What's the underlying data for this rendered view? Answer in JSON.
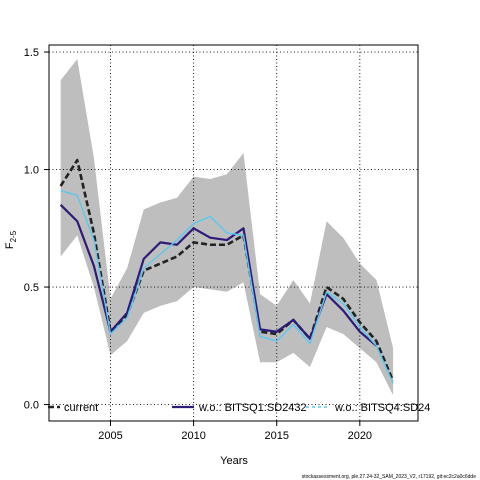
{
  "chart_data": {
    "type": "line",
    "xlabel": "Years",
    "ylabel_main": "F",
    "ylabel_sub": "2-5",
    "xlim": [
      2001.3,
      2023.5
    ],
    "ylim": [
      -0.07,
      1.53
    ],
    "x_ticks": [
      2005,
      2010,
      2015,
      2020
    ],
    "y_ticks": [
      0.0,
      0.5,
      1.0,
      1.5
    ],
    "x_tick_labels": [
      "2005",
      "2010",
      "2015",
      "2020"
    ],
    "y_tick_labels": [
      "0.0",
      "0.5",
      "1.0",
      "1.5"
    ],
    "grid": true,
    "legend_position": "bottom",
    "confidence_band": {
      "x": [
        2002,
        2003,
        2004,
        2005,
        2006,
        2007,
        2008,
        2009,
        2010,
        2011,
        2012,
        2013,
        2014,
        2015,
        2016,
        2017,
        2018,
        2019,
        2020,
        2021,
        2022
      ],
      "lower": [
        0.63,
        0.72,
        0.5,
        0.21,
        0.27,
        0.39,
        0.42,
        0.44,
        0.5,
        0.49,
        0.48,
        0.52,
        0.18,
        0.18,
        0.22,
        0.16,
        0.33,
        0.3,
        0.24,
        0.18,
        0.04
      ],
      "upper": [
        1.38,
        1.47,
        1.05,
        0.45,
        0.58,
        0.83,
        0.86,
        0.88,
        0.97,
        0.96,
        0.98,
        1.07,
        0.47,
        0.42,
        0.53,
        0.43,
        0.78,
        0.71,
        0.6,
        0.53,
        0.24
      ]
    },
    "series": [
      {
        "name": "current",
        "color": "#222222",
        "dash": "6,3",
        "width": 2.6,
        "x": [
          2002,
          2003,
          2004,
          2005,
          2006,
          2007,
          2008,
          2009,
          2010,
          2011,
          2012,
          2013,
          2014,
          2015,
          2016,
          2017,
          2018,
          2019,
          2020,
          2021,
          2022
        ],
        "values": [
          0.93,
          1.04,
          0.73,
          0.31,
          0.38,
          0.57,
          0.6,
          0.63,
          0.69,
          0.68,
          0.68,
          0.72,
          0.31,
          0.3,
          0.36,
          0.28,
          0.5,
          0.45,
          0.35,
          0.27,
          0.1
        ]
      },
      {
        "name": "w.o.: BITSQ1:SD2432",
        "color": "#2e1a78",
        "dash": "",
        "width": 2.2,
        "x": [
          2002,
          2003,
          2004,
          2005,
          2006,
          2007,
          2008,
          2009,
          2010,
          2011,
          2012,
          2013,
          2014,
          2015,
          2016,
          2017,
          2018,
          2019,
          2020,
          2021
        ],
        "values": [
          0.85,
          0.78,
          0.59,
          0.31,
          0.39,
          0.62,
          0.69,
          0.68,
          0.75,
          0.71,
          0.7,
          0.75,
          0.32,
          0.31,
          0.36,
          0.28,
          0.47,
          0.4,
          0.31,
          0.25
        ]
      },
      {
        "name": "w.o.: BITSQ4:SD24",
        "color": "#5bc8f0",
        "dash": "",
        "width": 1.4,
        "x": [
          2002,
          2003,
          2004,
          2005,
          2006,
          2007,
          2008,
          2009,
          2010,
          2011,
          2012,
          2013,
          2014,
          2015,
          2016,
          2017,
          2018,
          2019,
          2020,
          2021,
          2022
        ],
        "values": [
          0.91,
          0.89,
          0.7,
          0.3,
          0.37,
          0.58,
          0.64,
          0.7,
          0.77,
          0.8,
          0.73,
          0.72,
          0.29,
          0.27,
          0.34,
          0.26,
          0.48,
          0.43,
          0.33,
          0.25,
          0.09
        ]
      }
    ],
    "legend_labels": [
      "current",
      "w.o.: BITSQ1:SD2432",
      "w.o.: BITSQ4:SD24"
    ]
  },
  "footer": "stockassessment.org, ple.27.24-32_SAM_2023_V2, r17192, git:ec2c2a0c6dde"
}
